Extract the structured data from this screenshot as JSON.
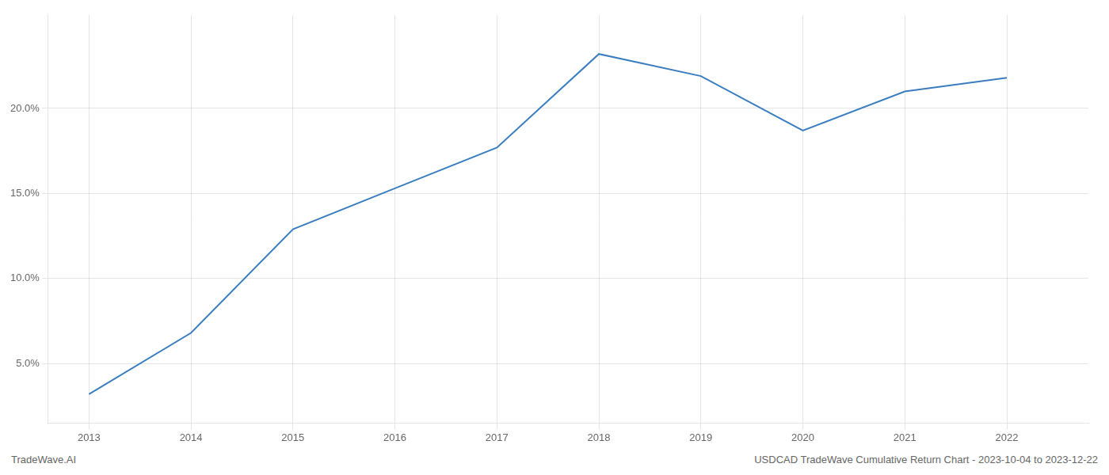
{
  "chart_data": {
    "type": "line",
    "x": [
      2013,
      2014,
      2015,
      2016,
      2017,
      2018,
      2019,
      2020,
      2021,
      2022
    ],
    "values": [
      3.2,
      6.8,
      12.9,
      15.3,
      17.7,
      23.2,
      21.9,
      18.7,
      21.0,
      21.8
    ],
    "color": "#3a7ebf",
    "xlim": [
      2012.6,
      2022.8
    ],
    "xticks": [
      2013,
      2014,
      2015,
      2016,
      2017,
      2018,
      2019,
      2020,
      2021,
      2022
    ],
    "ylim": [
      1.5,
      25.5
    ],
    "yticks": [
      {
        "value": 5.0,
        "label": "5.0%"
      },
      {
        "value": 10.0,
        "label": "10.0%"
      },
      {
        "value": 15.0,
        "label": "15.0%"
      },
      {
        "value": 20.0,
        "label": "20.0%"
      }
    ],
    "grid": true,
    "annotations": [
      "TradeWave.AI",
      "USDCAD TradeWave Cumulative Return Chart - 2023-10-04 to 2023-12-22"
    ]
  }
}
